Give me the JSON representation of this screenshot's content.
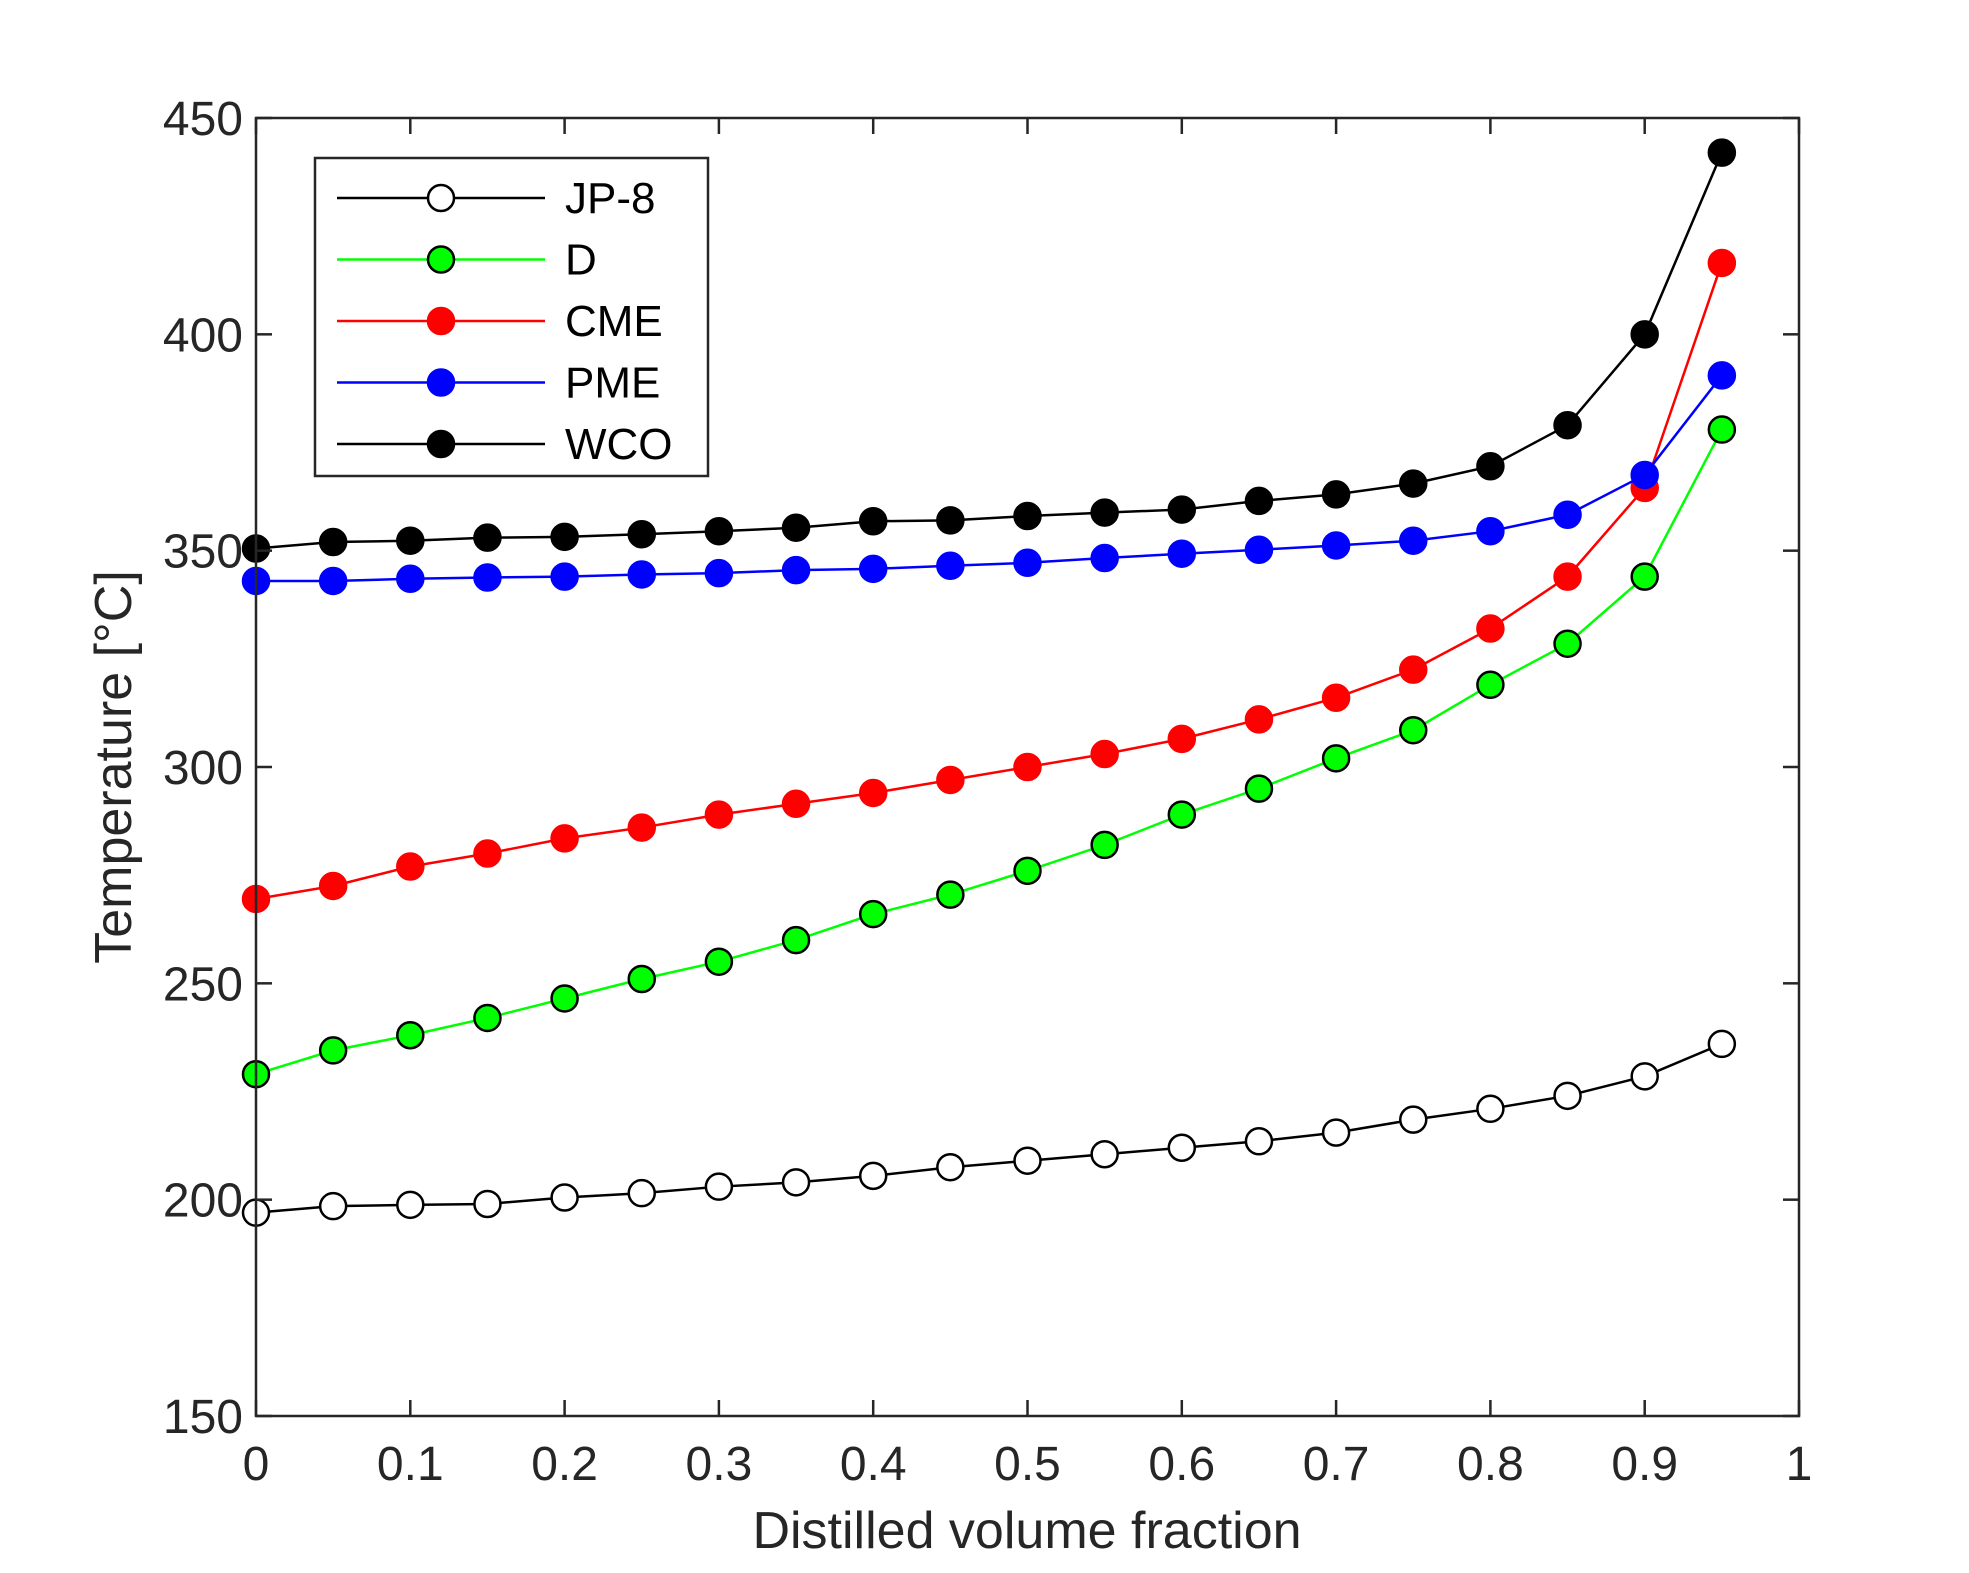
{
  "chart_data": {
    "type": "line",
    "title": "",
    "xlabel": "Distilled volume fraction",
    "ylabel": "Temperature [°C]",
    "xlim": [
      0,
      1
    ],
    "ylim": [
      150,
      450
    ],
    "xticks": [
      0,
      0.1,
      0.2,
      0.3,
      0.4,
      0.5,
      0.6,
      0.7,
      0.8,
      0.9,
      1
    ],
    "xtick_labels": [
      "0",
      "0.1",
      "0.2",
      "0.3",
      "0.4",
      "0.5",
      "0.6",
      "0.7",
      "0.8",
      "0.9",
      "1"
    ],
    "yticks": [
      150,
      200,
      250,
      300,
      350,
      400,
      450
    ],
    "ytick_labels": [
      "150",
      "200",
      "250",
      "300",
      "350",
      "400",
      "450"
    ],
    "grid": false,
    "legend_position": "top-left",
    "x": [
      0,
      0.05,
      0.1,
      0.15,
      0.2,
      0.25,
      0.3,
      0.35,
      0.4,
      0.45,
      0.5,
      0.55,
      0.6,
      0.65,
      0.7,
      0.75,
      0.8,
      0.85,
      0.9,
      0.95
    ],
    "series": [
      {
        "name": "JP-8",
        "line_color": "#000000",
        "marker_fill": "#ffffff",
        "marker_edge": "#000000",
        "values": [
          197,
          198.5,
          198.8,
          199,
          200.5,
          201.5,
          203,
          204,
          205.5,
          207.5,
          209,
          210.5,
          212,
          213.5,
          215.5,
          218.5,
          221,
          224,
          228.5,
          236
        ]
      },
      {
        "name": "D",
        "line_color": "#00ff00",
        "marker_fill": "#00ff00",
        "marker_edge": "#000000",
        "values": [
          229,
          234.5,
          238,
          242,
          246.5,
          251,
          255,
          260,
          266,
          270.5,
          276,
          282,
          289,
          295,
          302,
          308.5,
          319,
          328.5,
          344,
          378
        ]
      },
      {
        "name": "CME",
        "line_color": "#ff0000",
        "marker_fill": "#ff0000",
        "marker_edge": "#ff0000",
        "values": [
          269.5,
          272.5,
          277,
          280,
          283.5,
          286,
          289,
          291.5,
          294,
          297,
          300,
          303,
          306.5,
          311,
          316,
          322.5,
          332,
          344,
          364.5,
          416.5
        ]
      },
      {
        "name": "PME",
        "line_color": "#0000ff",
        "marker_fill": "#0000ff",
        "marker_edge": "#0000ff",
        "values": [
          343,
          343,
          343.5,
          343.8,
          344,
          344.5,
          344.8,
          345.5,
          345.8,
          346.5,
          347.2,
          348.3,
          349.3,
          350.2,
          351.2,
          352.3,
          354.5,
          358.3,
          367.5,
          390.5
        ]
      },
      {
        "name": "WCO",
        "line_color": "#000000",
        "marker_fill": "#000000",
        "marker_edge": "#000000",
        "values": [
          350.5,
          352,
          352.3,
          353,
          353.2,
          353.8,
          354.5,
          355.3,
          356.8,
          357,
          358,
          358.8,
          359.5,
          361.5,
          363,
          365.5,
          369.5,
          379,
          400,
          442
        ]
      }
    ]
  }
}
